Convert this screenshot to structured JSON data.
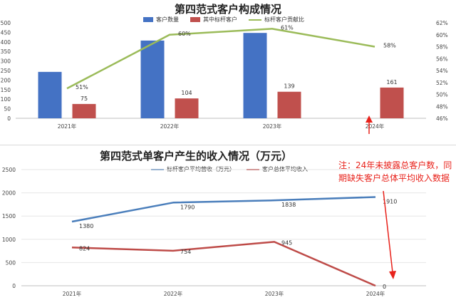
{
  "chart_data": [
    {
      "type": "bar",
      "title": "第四范式客户构成情况",
      "categories": [
        "2021年",
        "2022年",
        "2023年",
        "2024年"
      ],
      "series": [
        {
          "name": "客户数量",
          "kind": "bar",
          "axis": "left",
          "color": "#4472c4",
          "values": [
            243,
            407,
            447,
            null
          ]
        },
        {
          "name": "其中标杆客户",
          "kind": "bar",
          "axis": "left",
          "color": "#c0504d",
          "values": [
            75,
            104,
            139,
            161
          ]
        },
        {
          "name": "标杆客户贡献比",
          "kind": "line",
          "axis": "right",
          "color": "#9bbb59",
          "values": [
            51,
            60,
            61,
            58
          ]
        }
      ],
      "left_axis": {
        "min": 0,
        "max": 500,
        "ticks": [
          "0",
          "50",
          "100",
          "150",
          "200",
          "250",
          "300",
          "350",
          "400",
          "450",
          "500"
        ]
      },
      "right_axis": {
        "min": 46,
        "max": 62,
        "ticks": [
          "46%",
          "48%",
          "50%",
          "52%",
          "54%",
          "56%",
          "58%",
          "60%",
          "62%"
        ]
      },
      "bar_labels": [
        "75",
        "104",
        "139",
        "161"
      ],
      "line_labels": [
        "51%",
        "60%",
        "61%",
        "58%"
      ],
      "legend": "top",
      "grid": false
    },
    {
      "type": "line",
      "title": "第四范式单客户产生的收入情况（万元）",
      "categories": [
        "2021年",
        "2022年",
        "2023年",
        "2024年"
      ],
      "series": [
        {
          "name": "标杆客户平均营收（万元）",
          "color": "#4a7ebb",
          "values": [
            1380,
            1790,
            1838,
            1910
          ]
        },
        {
          "name": "客户总体平均收入",
          "color": "#be4b48",
          "values": [
            824,
            754,
            945,
            0
          ]
        }
      ],
      "y_axis": {
        "min": 0,
        "max": 2500,
        "ticks": [
          "0",
          "500",
          "1000",
          "1500",
          "2000",
          "2500"
        ]
      },
      "point_labels": [
        [
          "1380",
          "1790",
          "1838",
          "1910"
        ],
        [
          "824",
          "754",
          "945",
          "0"
        ]
      ],
      "legend": "top",
      "grid": true
    }
  ],
  "annotation": {
    "text": "注：24年未披露总客户数，同期缺失客户总体平均收入数据",
    "color": "#e8221b"
  }
}
